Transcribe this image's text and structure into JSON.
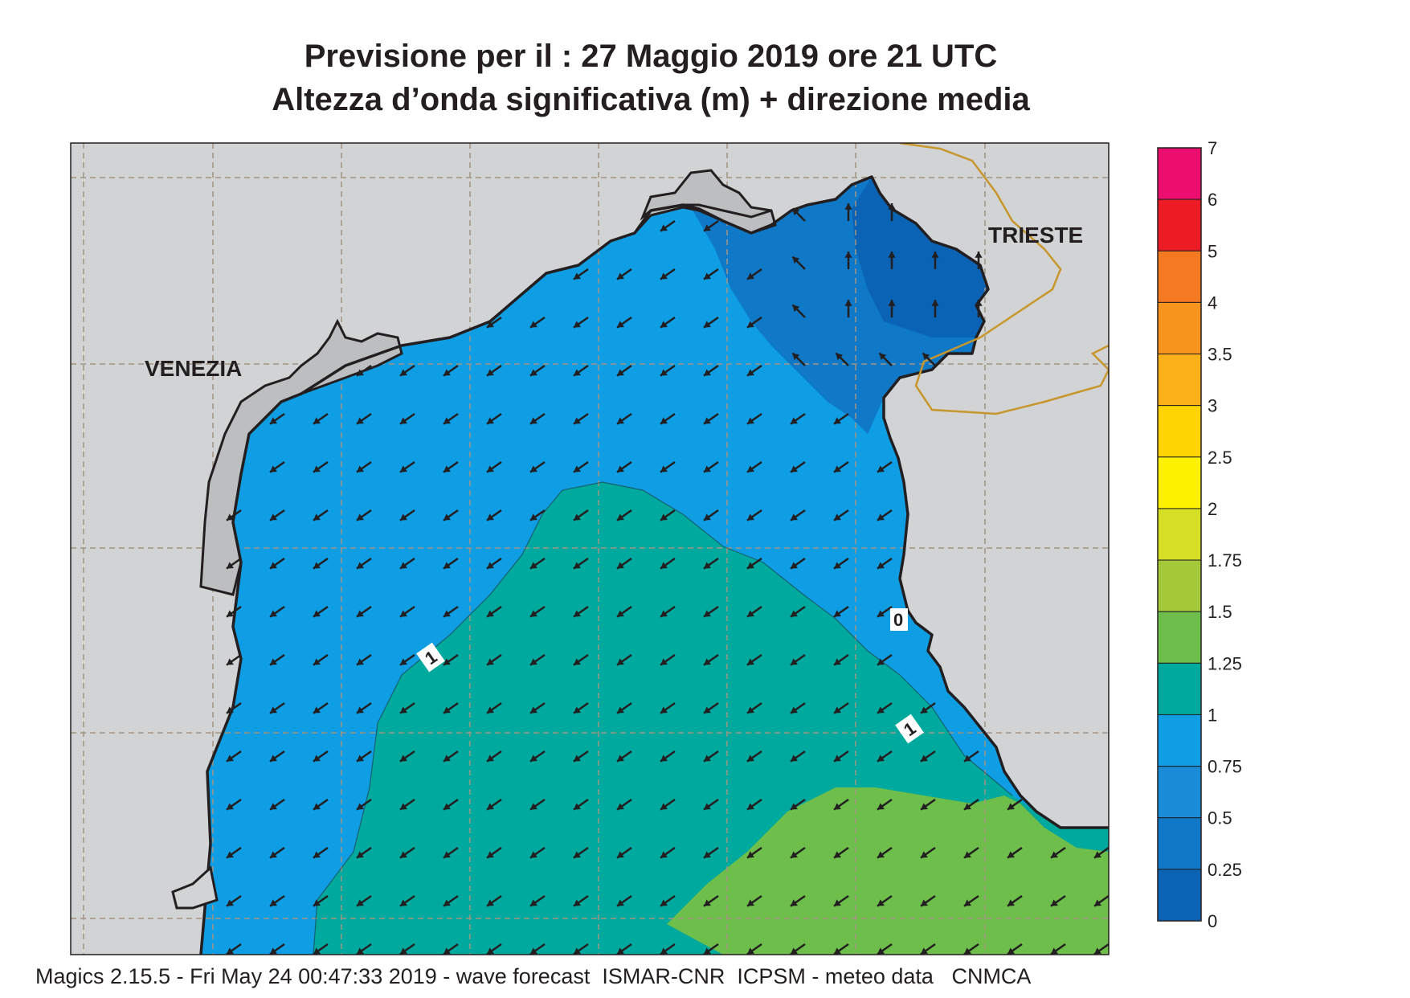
{
  "header": {
    "title_line1": "Previsione per il  :  27   Maggio  2019   ore 21 UTC",
    "title_line2": "Altezza d’onda significativa (m) + direzione media"
  },
  "map": {
    "place_labels": [
      "VENEZIA",
      "TRIESTE"
    ],
    "contour_labels": [
      "1",
      "1",
      "0"
    ],
    "wave_direction": "arrows pointing toward north-west (toward the top-left), north along the eastern coast near Trieste",
    "colors": {
      "land": "#d1d3d4",
      "coastline": "#231f20",
      "border": "#c7962c",
      "grid": "#a39482"
    }
  },
  "legend": {
    "title": "",
    "ticks": [
      "0",
      "0.25",
      "0.5",
      "0.75",
      "1",
      "1.25",
      "1.5",
      "1.75",
      "2",
      "2.5",
      "3",
      "3.5",
      "4",
      "5",
      "6",
      "7"
    ],
    "colors": [
      "#0a63b4",
      "#0f79c8",
      "#1a8bd6",
      "#0f9de3",
      "#00a99d",
      "#6dbe4b",
      "#a6c93a",
      "#d5df24",
      "#fff200",
      "#ffd400",
      "#fbb01a",
      "#f7941d",
      "#f47920",
      "#ed1c24",
      "#ec0e6e"
    ]
  },
  "footer": {
    "text": "Magics 2.15.5 - Fri May 24 00:47:33 2019 - wave forecast  ISMAR-CNR  ICPSM - meteo data   CNMCA"
  }
}
